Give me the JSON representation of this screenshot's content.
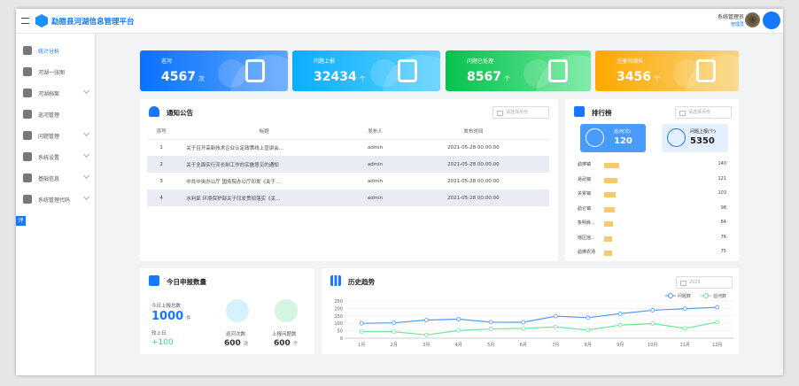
{
  "header": {
    "title": "勐腊县河湖信息管理平台",
    "user_name": "系统管理员",
    "user_role": "管理员"
  },
  "sidebar": {
    "items": [
      {
        "label": "统计分析",
        "active": true,
        "icon": "pie-chart-icon",
        "expandable": false
      },
      {
        "label": "河湖一张图",
        "icon": "map-icon",
        "expandable": false
      },
      {
        "label": "河湖档案",
        "icon": "archive-icon",
        "expandable": true
      },
      {
        "label": "巡河管理",
        "icon": "patrol-icon",
        "expandable": false
      },
      {
        "label": "问题管理",
        "icon": "problem-icon",
        "expandable": true
      },
      {
        "label": "系统设置",
        "icon": "gear-icon",
        "expandable": true
      },
      {
        "label": "基础信息",
        "icon": "list-icon",
        "expandable": true
      },
      {
        "label": "系统管理代码",
        "icon": "gear-icon",
        "expandable": true
      }
    ],
    "tag": "评"
  },
  "stats": [
    {
      "label": "巡河",
      "value": "4567",
      "unit": "次",
      "color": "#1677ff",
      "icon": "river-location-icon"
    },
    {
      "label": "问题上报",
      "value": "32434",
      "unit": "个",
      "color": "#1ab4ff",
      "icon": "upload-doc-icon"
    },
    {
      "label": "问题已处理",
      "value": "8567",
      "unit": "个",
      "color": "#10c45a",
      "icon": "checklist-icon"
    },
    {
      "label": "注册河湖长",
      "value": "3456",
      "unit": "个",
      "color": "#ffac12",
      "icon": "add-user-icon"
    }
  ],
  "notice": {
    "title": "通知公告",
    "date_placeholder": "请选择月份",
    "columns": [
      "序号",
      "标题",
      "发布人",
      "发布时间"
    ],
    "rows": [
      [
        "1",
        "关于召开高新技术企业认定政策线上宣讲会...",
        "admin",
        "2021-05-28 00:00:00"
      ],
      [
        "2",
        "关于全面实行河长制工作的实施意见的通知",
        "admin",
        "2021-05-28 00:00:00"
      ],
      [
        "3",
        "中共中央办公厅 国务院办公厅印发《关于...",
        "admin",
        "2021-05-28 00:00:00"
      ],
      [
        "4",
        "水利部 环境保护部关于印发贯彻落实《关...",
        "admin",
        "2021-05-28 00:00:00"
      ]
    ]
  },
  "ranking": {
    "title": "排行榜",
    "date_placeholder": "请选择月份",
    "summary": [
      {
        "label": "巡河(次)",
        "value": "120"
      },
      {
        "label": "问题上报(个)",
        "value": "5350"
      }
    ],
    "items": [
      {
        "name": "勐捧镇",
        "value": 140
      },
      {
        "name": "易武镇",
        "value": 121
      },
      {
        "name": "关累镇",
        "value": 103
      },
      {
        "name": "勐仑镇",
        "value": 98
      },
      {
        "name": "象明彝...",
        "value": 84
      },
      {
        "name": "瑶区瑶...",
        "value": 76
      },
      {
        "name": "勐捧农场",
        "value": 75
      }
    ]
  },
  "today": {
    "title": "今日申报数量",
    "total_label": "今日上报总数",
    "total_value": "1000",
    "total_unit": "件",
    "compare_label": "较上日",
    "compare_value": "+100",
    "patrol_label": "巡河次数",
    "patrol_value": "600",
    "patrol_unit": "次",
    "report_label": "上报问题数",
    "report_value": "600",
    "report_unit": "个"
  },
  "trend": {
    "title": "历史趋势",
    "year": "2023"
  },
  "chart_data": {
    "type": "line",
    "categories": [
      "1月",
      "2月",
      "3月",
      "4月",
      "5月",
      "6月",
      "7月",
      "8月",
      "9月",
      "10月",
      "11月",
      "12月"
    ],
    "ylim": [
      0,
      250
    ],
    "yticks": [
      0,
      50,
      100,
      150,
      200,
      250
    ],
    "grid": true,
    "legend": "top-right",
    "series": [
      {
        "name": "问题数",
        "color": "#4e9bff",
        "values": [
          100,
          103,
          122,
          128,
          108,
          107,
          148,
          138,
          165,
          188,
          198,
          208
        ]
      },
      {
        "name": "巡河数",
        "color": "#6ee59a",
        "values": [
          44,
          44,
          22,
          52,
          62,
          66,
          76,
          55,
          88,
          98,
          66,
          108
        ]
      }
    ]
  }
}
